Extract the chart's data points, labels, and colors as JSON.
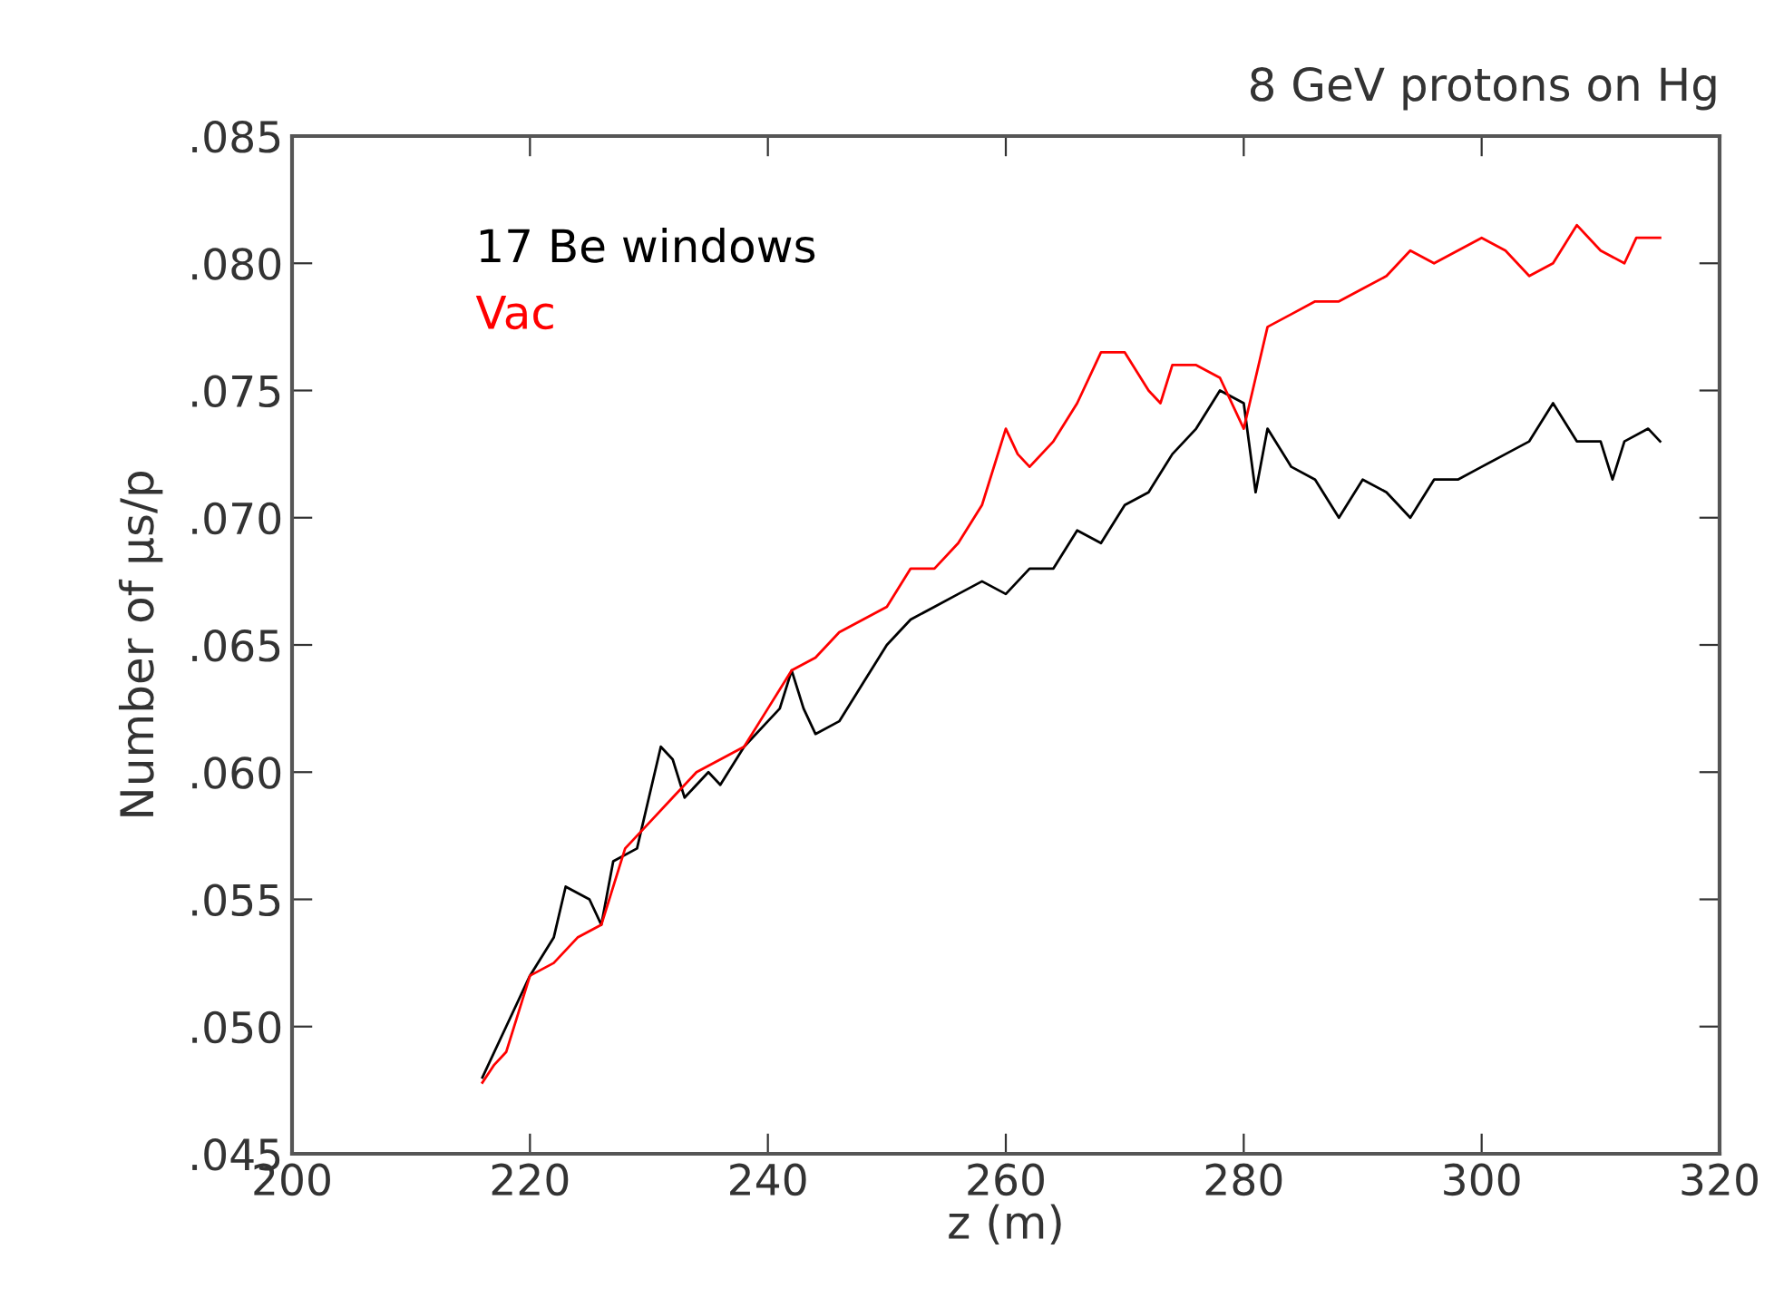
{
  "chart_data": {
    "type": "line",
    "title": "8 GeV protons on Hg",
    "xlabel": "z (m)",
    "ylabel": "Number of μs/p",
    "legend": "top left",
    "grid": false,
    "xlim": [
      200,
      320
    ],
    "xticks": [
      200,
      220,
      240,
      260,
      280,
      300,
      320
    ],
    "ylim": [
      0.045,
      0.085
    ],
    "yticks": [
      {
        "value": 0.045,
        "label": ".045"
      },
      {
        "value": 0.05,
        "label": ".050"
      },
      {
        "value": 0.055,
        "label": ".055"
      },
      {
        "value": 0.06,
        "label": ".060"
      },
      {
        "value": 0.065,
        "label": ".065"
      },
      {
        "value": 0.07,
        "label": ".070"
      },
      {
        "value": 0.075,
        "label": ".075"
      },
      {
        "value": 0.08,
        "label": ".080"
      },
      {
        "value": 0.085,
        "label": ".085"
      }
    ],
    "series": [
      {
        "name": "17 Be windows",
        "color": "#000000",
        "x": [
          216,
          218,
          220,
          222,
          223,
          225,
          226,
          227,
          229,
          230,
          231,
          232,
          233,
          235,
          236,
          238,
          240,
          241,
          242,
          243,
          244,
          246,
          248,
          250,
          252,
          254,
          256,
          258,
          260,
          262,
          264,
          266,
          268,
          270,
          272,
          274,
          276,
          278,
          280,
          281,
          282,
          284,
          286,
          288,
          290,
          292,
          294,
          296,
          298,
          300,
          302,
          304,
          306,
          308,
          310,
          311,
          312,
          314,
          315
        ],
        "values": [
          0.048,
          0.05,
          0.052,
          0.0535,
          0.0555,
          0.055,
          0.054,
          0.0565,
          0.057,
          0.059,
          0.061,
          0.0605,
          0.059,
          0.06,
          0.0595,
          0.061,
          0.062,
          0.0625,
          0.064,
          0.0625,
          0.0615,
          0.062,
          0.0635,
          0.065,
          0.066,
          0.0665,
          0.067,
          0.0675,
          0.067,
          0.068,
          0.068,
          0.0695,
          0.069,
          0.0705,
          0.071,
          0.0725,
          0.0735,
          0.075,
          0.0745,
          0.071,
          0.0735,
          0.072,
          0.0715,
          0.07,
          0.0715,
          0.071,
          0.07,
          0.0715,
          0.0715,
          0.072,
          0.0725,
          0.073,
          0.0745,
          0.073,
          0.073,
          0.0715,
          0.073,
          0.0735,
          0.073
        ]
      },
      {
        "name": "Vac",
        "color": "#ff0000",
        "x": [
          216,
          217,
          218,
          220,
          222,
          224,
          226,
          228,
          230,
          232,
          234,
          236,
          238,
          240,
          242,
          244,
          246,
          248,
          250,
          252,
          254,
          256,
          258,
          260,
          261,
          262,
          264,
          266,
          268,
          270,
          272,
          273,
          274,
          276,
          278,
          280,
          281,
          282,
          284,
          286,
          288,
          290,
          292,
          294,
          296,
          298,
          300,
          302,
          304,
          306,
          308,
          310,
          312,
          313,
          315
        ],
        "values": [
          0.0478,
          0.0485,
          0.049,
          0.052,
          0.0525,
          0.0535,
          0.054,
          0.057,
          0.058,
          0.059,
          0.06,
          0.0605,
          0.061,
          0.0625,
          0.064,
          0.0645,
          0.0655,
          0.066,
          0.0665,
          0.068,
          0.068,
          0.069,
          0.0705,
          0.0735,
          0.0725,
          0.072,
          0.073,
          0.0745,
          0.0765,
          0.0765,
          0.075,
          0.0745,
          0.076,
          0.076,
          0.0755,
          0.0735,
          0.0755,
          0.0775,
          0.078,
          0.0785,
          0.0785,
          0.079,
          0.0795,
          0.0805,
          0.08,
          0.0805,
          0.081,
          0.0805,
          0.0795,
          0.08,
          0.0815,
          0.0805,
          0.08,
          0.081,
          0.081
        ]
      }
    ]
  }
}
